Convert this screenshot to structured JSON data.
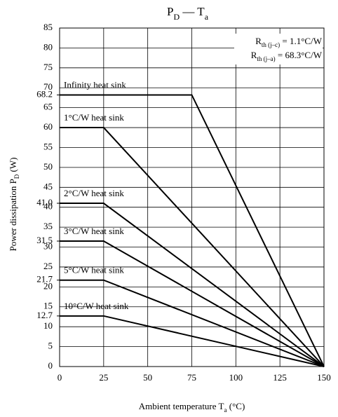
{
  "chart_data": {
    "type": "line",
    "title": [
      "P",
      "D",
      " — T",
      "a"
    ],
    "xlabel": [
      "Ambient temperature  T",
      "a",
      "  (°C)"
    ],
    "ylabel": [
      "Power dissipation  P",
      "D",
      "  (W)"
    ],
    "annotations": [
      [
        "R",
        "th (j–c)",
        " = 1.1°C/W"
      ],
      [
        "R",
        "th (j–a)",
        " = 68.3°C/W"
      ]
    ],
    "xlim": [
      0,
      150
    ],
    "xticks": [
      0,
      25,
      50,
      75,
      100,
      125,
      150
    ],
    "ylim": [
      0,
      85
    ],
    "yticks": [
      0,
      5,
      10,
      15,
      20,
      25,
      30,
      35,
      40,
      45,
      50,
      55,
      60,
      65,
      70,
      75,
      80,
      85
    ],
    "yticks_minor": [
      12.7,
      21.7,
      31.5,
      {
        "value": 41,
        "label": "41.0"
      },
      68.2
    ],
    "grid": true,
    "series": [
      {
        "name": "Infinity heat sink",
        "color": "#000000",
        "x": [
          0,
          75,
          150
        ],
        "values": [
          68.2,
          68.2,
          0
        ]
      },
      {
        "name": "1°C/W heat sink",
        "color": "#000000",
        "x": [
          0,
          25,
          150
        ],
        "values": [
          60,
          60,
          0
        ]
      },
      {
        "name": "2°C/W heat sink",
        "color": "#000000",
        "x": [
          0,
          25,
          150
        ],
        "values": [
          41,
          41,
          0
        ]
      },
      {
        "name": "3°C/W heat sink",
        "color": "#000000",
        "x": [
          0,
          25,
          150
        ],
        "values": [
          31.5,
          31.5,
          0
        ]
      },
      {
        "name": "5°C/W heat sink",
        "color": "#000000",
        "x": [
          0,
          25,
          150
        ],
        "values": [
          21.7,
          21.7,
          0
        ]
      },
      {
        "name": "10°C/W heat sink",
        "color": "#000000",
        "x": [
          0,
          25,
          150
        ],
        "values": [
          12.7,
          12.7,
          0
        ]
      }
    ]
  }
}
